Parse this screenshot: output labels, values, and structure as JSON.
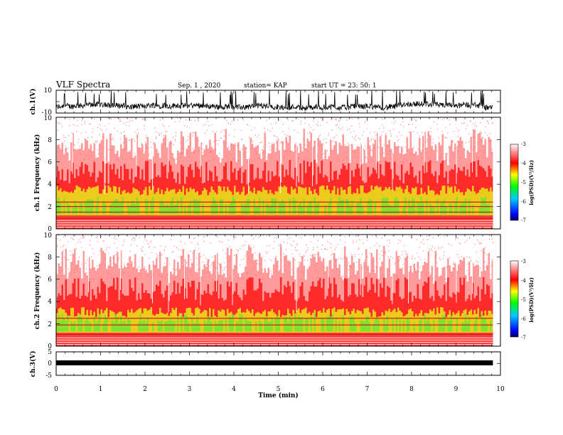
{
  "header": {
    "title": "VLF Spectra",
    "date": "Sep. 1 , 2020",
    "station": "station= KAP",
    "start": "start UT = 23: 50: 1"
  },
  "chart_data": [
    {
      "type": "line",
      "panel": "ch1-waveform",
      "ylabel": "ch.1(V)",
      "ytick_labels": [
        "10",
        "-10"
      ],
      "ylim": [
        -10,
        10
      ],
      "xlim": [
        0,
        10
      ],
      "x_end": 9.83,
      "description": "dense noisy waveform, baseline about -5 V, excursions to +10 V"
    },
    {
      "type": "heatmap",
      "panel": "ch1-spectrogram",
      "ylabel": "ch.1 Frequency (kHz)",
      "ytick_labels": [
        "0",
        "2",
        "4",
        "6",
        "8",
        "10"
      ],
      "ylim": [
        0,
        10
      ],
      "xlim": [
        0,
        10
      ],
      "x_end": 9.83,
      "colorbar": {
        "label": "log(PSD)(V²/Hz)",
        "tick_labels": [
          "-3",
          "-4",
          "-5",
          "-6",
          "-7"
        ],
        "range": [
          -7,
          -3
        ],
        "colors": [
          "#000060",
          "#0000ff",
          "#00c8ff",
          "#00ff00",
          "#ffff00",
          "#ff0000",
          "#ff9090",
          "#ffffff"
        ]
      }
    },
    {
      "type": "heatmap",
      "panel": "ch2-spectrogram",
      "ylabel": "ch.2 Frequency (kHz)",
      "ytick_labels": [
        "0",
        "2",
        "4",
        "6",
        "8",
        "10"
      ],
      "ylim": [
        0,
        10
      ],
      "xlim": [
        0,
        10
      ],
      "x_end": 9.83,
      "colorbar": {
        "label": "log(PSD)(V²/Hz)",
        "tick_labels": [
          "-3",
          "-4",
          "-5",
          "-6",
          "-7"
        ],
        "range": [
          -7,
          -3
        ],
        "colors": [
          "#000060",
          "#0000ff",
          "#00c8ff",
          "#00ff00",
          "#ffff00",
          "#ff0000",
          "#ff9090",
          "#ffffff"
        ]
      }
    },
    {
      "type": "line",
      "panel": "ch3-waveform",
      "ylabel": "ch.3(V)",
      "ytick_labels": [
        "5",
        "0",
        "-5"
      ],
      "ylim": [
        -5,
        5
      ],
      "xlim": [
        0,
        10
      ],
      "x_end": 9.83,
      "description": "thick flat trace near -0.5 V"
    }
  ],
  "x_axis": {
    "label": "Time (min)",
    "tick_labels": [
      "0",
      "1",
      "2",
      "3",
      "4",
      "5",
      "6",
      "7",
      "8",
      "9",
      "10"
    ]
  }
}
